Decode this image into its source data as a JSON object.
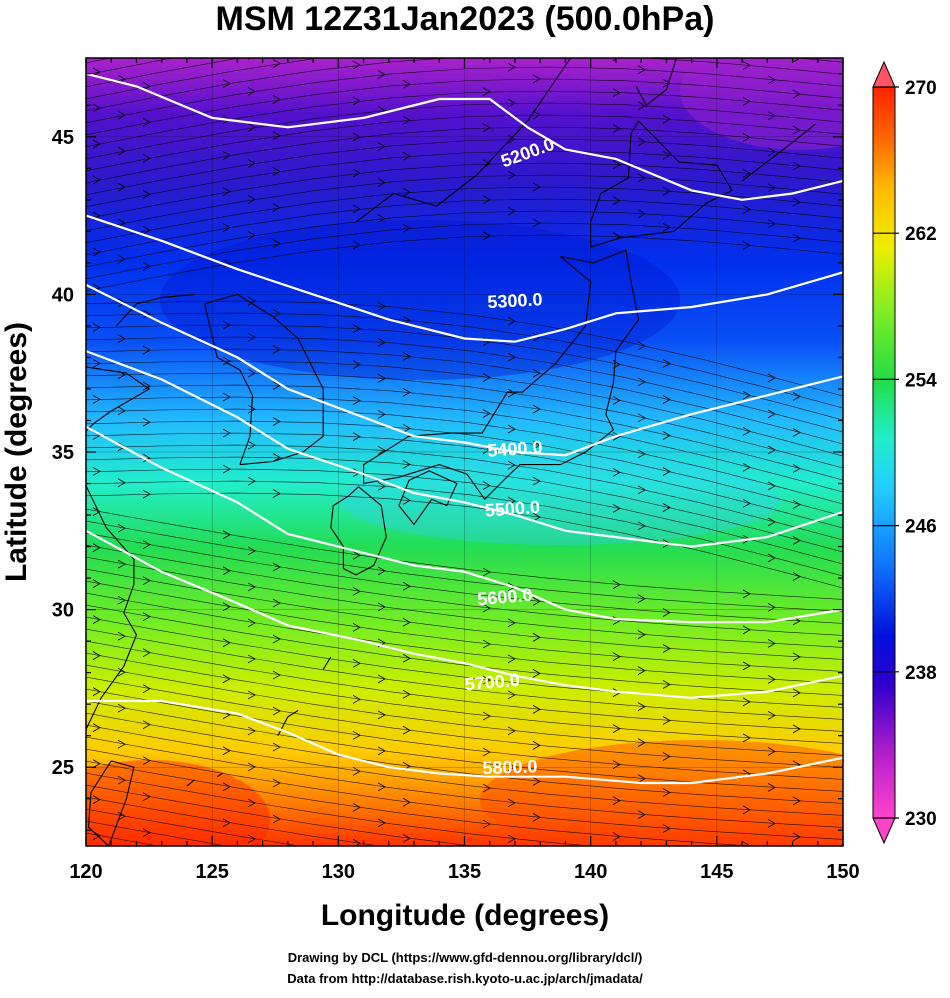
{
  "title": "MSM 12Z31Jan2023 (500.0hPa)",
  "x_axis": {
    "label": "Longitude (degrees)",
    "range": [
      120,
      150
    ],
    "ticks": [
      "120",
      "125",
      "130",
      "135",
      "140",
      "145",
      "150"
    ]
  },
  "y_axis": {
    "label": "Latitude  (degrees)",
    "range": [
      22.5,
      47.5
    ],
    "ticks": [
      "25",
      "30",
      "35",
      "40",
      "45"
    ]
  },
  "colorbar": {
    "range": [
      230,
      270
    ],
    "labels": [
      "270",
      "262",
      "254",
      "246",
      "238",
      "230"
    ],
    "colors_low_to_high": [
      "#ff33cc",
      "#aa22cc",
      "#4400cc",
      "#0022ee",
      "#1166ff",
      "#22ccff",
      "#22eecc",
      "#22dd44",
      "#88ee22",
      "#eeee00",
      "#ffbb00",
      "#ff6600",
      "#ff2200"
    ]
  },
  "contours": {
    "color": "#ffffff",
    "labels": [
      "5200.0",
      "5300.0",
      "5400.0",
      "5500.0",
      "5600.0",
      "5700.0",
      "5800.0"
    ]
  },
  "credits": {
    "drawing": "Drawing by DCL (https://www.gfd-dennou.org/library/dcl/)",
    "data": "Data from http://database.rish.kyoto-u.ac.jp/arch/jmadata/"
  }
}
